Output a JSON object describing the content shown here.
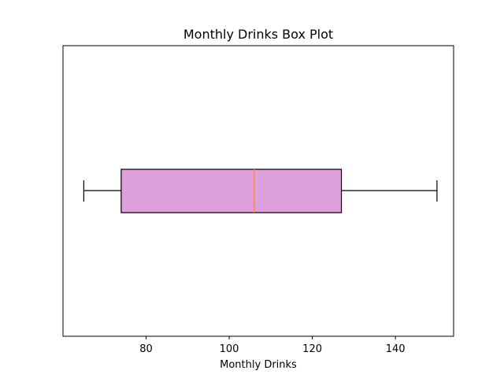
{
  "chart_data": {
    "type": "box",
    "title": "Monthly Drinks Box Plot",
    "xlabel": "Monthly Drinks",
    "ylabel": "",
    "orientation": "horizontal",
    "xlim": [
      60,
      154
    ],
    "xticks": [
      80,
      100,
      120,
      140
    ],
    "grid": false,
    "box": {
      "whisker_low": 65,
      "q1": 74,
      "median": 106,
      "q3": 127,
      "whisker_high": 150
    },
    "colors": {
      "box_fill": "#dda0dd",
      "median_line": "#ff7f50",
      "outline": "#000000"
    }
  }
}
